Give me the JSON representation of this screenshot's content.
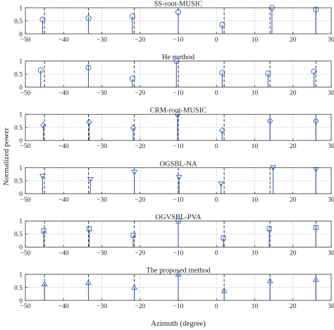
{
  "figure": {
    "ylabel": "Normalized power",
    "xlabel": "Azimuth (degree)"
  },
  "chart_data": [
    {
      "type": "stem",
      "title": "SS-root-MUSIC",
      "marker": "circle",
      "xlim": [
        -50,
        30
      ],
      "ylim": [
        0,
        1
      ],
      "xticks": [
        "−50",
        "−40",
        "−30",
        "−20",
        "−10",
        "0",
        "10",
        "20",
        "30"
      ],
      "yticks": [
        "0",
        "0.5",
        "1"
      ],
      "true_doas": [
        -45,
        -33.5,
        -21.5,
        -10,
        2,
        14,
        26
      ],
      "x": [
        -45.5,
        -33.5,
        -22,
        -10,
        1.5,
        14.5,
        26
      ],
      "y": [
        0.55,
        0.6,
        0.67,
        0.83,
        0.35,
        1.0,
        0.93
      ]
    },
    {
      "type": "stem",
      "title": "He method",
      "marker": "circle",
      "xlim": [
        -50,
        30
      ],
      "ylim": [
        0,
        1
      ],
      "xticks": [
        "−50",
        "−40",
        "−30",
        "−20",
        "−10",
        "0",
        "10",
        "20",
        "30"
      ],
      "yticks": [
        "0",
        "0.5",
        "1"
      ],
      "true_doas": [
        -45,
        -33.5,
        -21.5,
        -10,
        2,
        14,
        26
      ],
      "x": [
        -46,
        -33.5,
        -22,
        -10.5,
        1.5,
        13.5,
        25.5
      ],
      "y": [
        0.65,
        0.75,
        0.33,
        1.0,
        0.55,
        0.53,
        0.6
      ]
    },
    {
      "type": "stem",
      "title": "CRM-root-MUSIC",
      "marker": "diamond",
      "xlim": [
        -50,
        30
      ],
      "ylim": [
        0,
        1
      ],
      "xticks": [
        "−50",
        "−40",
        "−30",
        "−20",
        "−10",
        "0",
        "10",
        "20",
        "30"
      ],
      "yticks": [
        "0",
        "0.5",
        "1"
      ],
      "true_doas": [
        -45,
        -33.5,
        -21.5,
        -10,
        2,
        14,
        26
      ],
      "x": [
        -45.3,
        -33.3,
        -21.8,
        -10.2,
        1.5,
        14,
        26
      ],
      "y": [
        0.58,
        0.7,
        0.48,
        1.0,
        0.38,
        0.75,
        0.75
      ]
    },
    {
      "type": "stem",
      "title": "OGSBL-NA",
      "marker": "triangle-down",
      "xlim": [
        -50,
        30
      ],
      "ylim": [
        0,
        1
      ],
      "xticks": [
        "−50",
        "−40",
        "−30",
        "−20",
        "−10",
        "0",
        "10",
        "20",
        "30"
      ],
      "yticks": [
        "0",
        "0.5",
        "1"
      ],
      "true_doas": [
        -45,
        -33.5,
        -21.5,
        -10,
        2,
        14,
        26
      ],
      "x": [
        -45.5,
        -33,
        -21.5,
        -9.8,
        1.2,
        14.8,
        26
      ],
      "y": [
        0.67,
        0.55,
        0.83,
        0.63,
        0.38,
        1.0,
        0.93
      ]
    },
    {
      "type": "stem",
      "title": "OGVSBL-PVA",
      "marker": "square",
      "xlim": [
        -50,
        30
      ],
      "ylim": [
        0,
        1
      ],
      "xticks": [
        "−50",
        "−40",
        "−30",
        "−20",
        "−10",
        "0",
        "10",
        "20",
        "30"
      ],
      "yticks": [
        "0",
        "0.5",
        "1"
      ],
      "true_doas": [
        -45,
        -33.5,
        -21.5,
        -10,
        2,
        14,
        26
      ],
      "x": [
        -45.2,
        -33.3,
        -21.8,
        -10,
        1.8,
        13.8,
        26
      ],
      "y": [
        0.62,
        0.7,
        0.45,
        1.0,
        0.35,
        0.7,
        0.75
      ]
    },
    {
      "type": "stem",
      "title": "The proposed method",
      "marker": "triangle-up",
      "xlim": [
        -50,
        30
      ],
      "ylim": [
        0,
        1
      ],
      "xticks": [
        "−50",
        "−40",
        "−30",
        "−20",
        "−10",
        "0",
        "10",
        "20",
        "30"
      ],
      "yticks": [
        "0",
        "0.5",
        "1"
      ],
      "true_doas": [
        -45,
        -33.5,
        -21.5,
        -10,
        2,
        14,
        26
      ],
      "x": [
        -45,
        -33.5,
        -21.5,
        -10,
        2,
        14,
        26
      ],
      "y": [
        0.63,
        0.68,
        0.5,
        1.0,
        0.37,
        0.75,
        0.8
      ]
    }
  ],
  "colors": {
    "stem": "#3b5bb5",
    "marker": "#3b5bb5",
    "true_doa": "#333333",
    "grid": "#999999",
    "axis": "#333333"
  }
}
